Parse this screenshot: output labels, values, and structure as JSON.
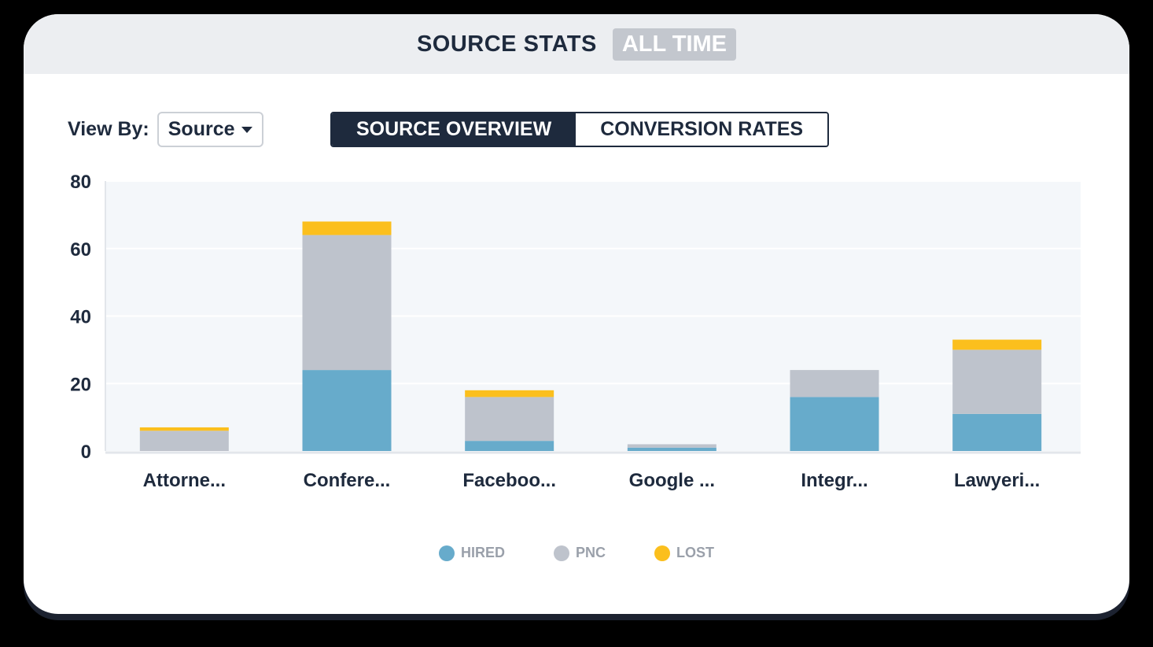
{
  "header": {
    "title": "SOURCE STATS",
    "period": "ALL TIME"
  },
  "controls": {
    "view_by_label": "View By:",
    "view_by_value": "Source",
    "tabs": [
      {
        "label": "SOURCE OVERVIEW",
        "active": true
      },
      {
        "label": "CONVERSION RATES",
        "active": false
      }
    ]
  },
  "colors": {
    "hired": "#67abcb",
    "pnc": "#bec3cc",
    "lost": "#fbbf1d",
    "navy": "#1e2a3d"
  },
  "chart_data": {
    "type": "bar",
    "stacked": true,
    "categories": [
      "Attorne...",
      "Confere...",
      "Faceboo...",
      "Google ...",
      "Integr...",
      "Lawyeri..."
    ],
    "series": [
      {
        "name": "HIRED",
        "values": [
          0,
          24,
          3,
          1,
          16,
          11
        ]
      },
      {
        "name": "PNC",
        "values": [
          6,
          40,
          13,
          1,
          8,
          19
        ]
      },
      {
        "name": "LOST",
        "values": [
          1,
          4,
          2,
          0,
          0,
          3
        ]
      }
    ],
    "ylim": [
      0,
      80
    ],
    "yticks": [
      0,
      20,
      40,
      60,
      80
    ],
    "grid": true,
    "legend_position": "bottom"
  }
}
